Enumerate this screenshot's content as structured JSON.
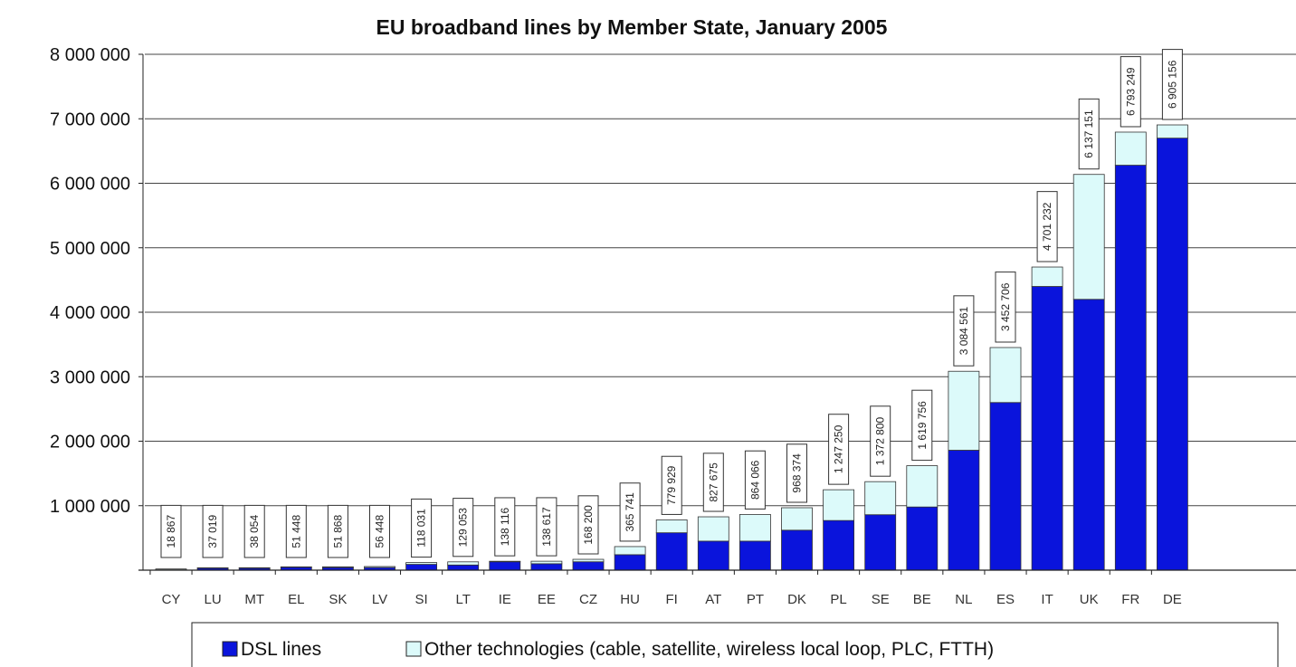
{
  "chart_data": {
    "type": "bar",
    "stacked": true,
    "title": "EU broadband lines by Member State, January 2005",
    "xlabel": "",
    "ylabel": "",
    "ylim": [
      0,
      8000000
    ],
    "yticks": [
      0,
      1000000,
      2000000,
      3000000,
      4000000,
      5000000,
      6000000,
      7000000,
      8000000
    ],
    "ytick_labels": [
      "",
      "1 000 000",
      "2 000 000",
      "3 000 000",
      "4 000 000",
      "5 000 000",
      "6 000 000",
      "7 000 000",
      "8 000 000"
    ],
    "grid": true,
    "legend_position": "bottom",
    "categories": [
      "CY",
      "LU",
      "MT",
      "EL",
      "SK",
      "LV",
      "SI",
      "LT",
      "IE",
      "EE",
      "CZ",
      "HU",
      "FI",
      "AT",
      "PT",
      "DK",
      "PL",
      "SE",
      "BE",
      "NL",
      "ES",
      "IT",
      "UK",
      "FR",
      "DE"
    ],
    "series": [
      {
        "name": "DSL lines",
        "color": "#0a14dc",
        "values": [
          5000,
          30000,
          30000,
          45000,
          40000,
          40000,
          90000,
          80000,
          130000,
          100000,
          130000,
          240000,
          580000,
          450000,
          450000,
          620000,
          770000,
          860000,
          980000,
          1860000,
          2600000,
          4400000,
          4200000,
          6280000,
          6700000
        ]
      },
      {
        "name": "Other technologies (cable, satellite, wireless local loop, PLC, FTTH)",
        "color": "#dcfafa",
        "values": [
          13867,
          7019,
          8054,
          6448,
          11868,
          16448,
          28031,
          49053,
          8116,
          38617,
          38200,
          125741,
          199929,
          377675,
          414066,
          348374,
          477250,
          512800,
          639756,
          1224561,
          852706,
          301232,
          1937151,
          513249,
          205156
        ]
      }
    ],
    "total_labels": [
      "18 867",
      "37 019",
      "38 054",
      "51 448",
      "51 868",
      "56 448",
      "118 031",
      "129 053",
      "138 116",
      "138 617",
      "168 200",
      "365 741",
      "779 929",
      "827 675",
      "864 066",
      "968 374",
      "1 247 250",
      "1 372 800",
      "1 619 756",
      "3 084 561",
      "3 452 706",
      "4 701 232",
      "6 137 151",
      "6 793 249",
      "6 905 156"
    ],
    "bar_colors": {
      "cy_color": "#7a7a7a"
    }
  }
}
